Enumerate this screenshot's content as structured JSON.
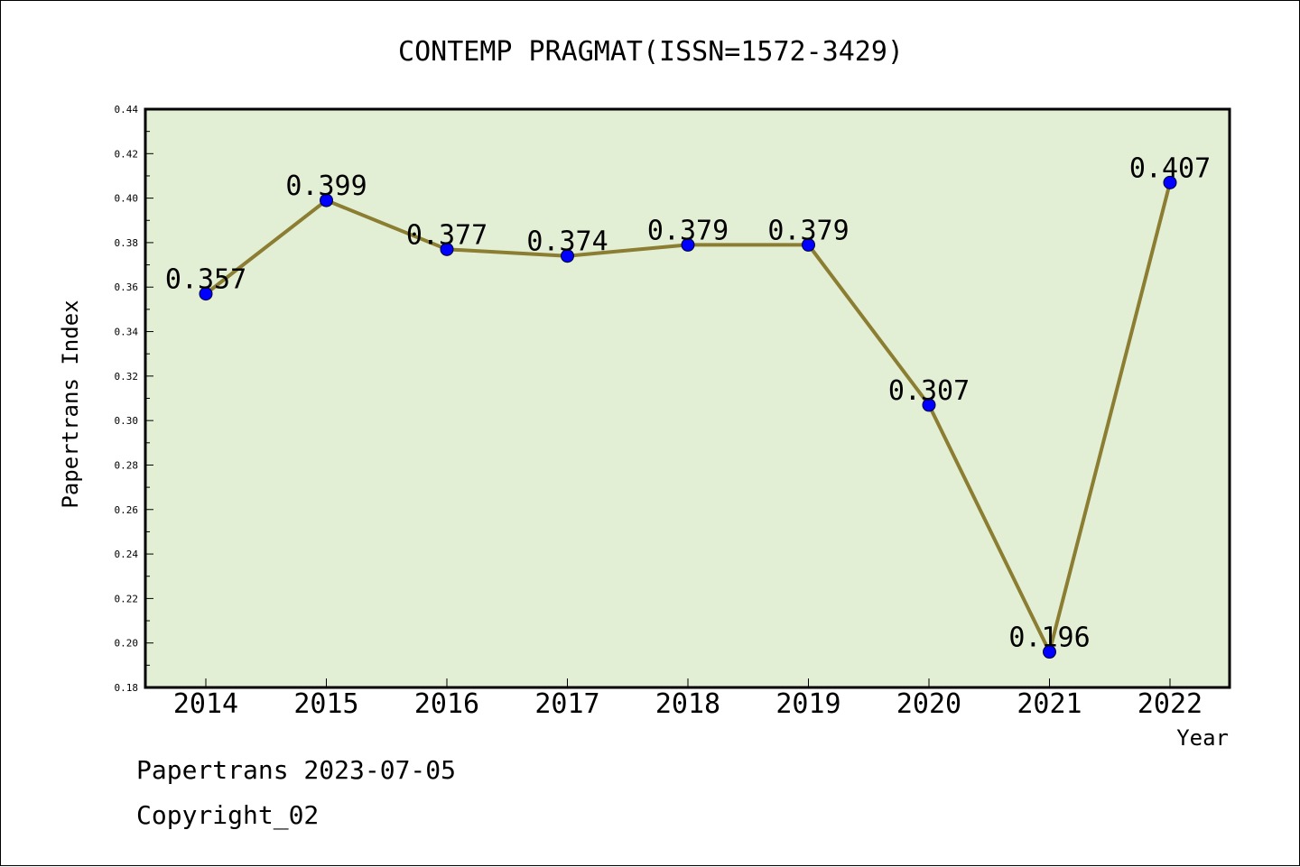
{
  "chart_data": {
    "type": "line",
    "title": "CONTEMP PRAGMAT(ISSN=1572-3429)",
    "xlabel": "Year",
    "ylabel": "Papertrans Index",
    "categories": [
      "2014",
      "2015",
      "2016",
      "2017",
      "2018",
      "2019",
      "2020",
      "2021",
      "2022"
    ],
    "series": [
      {
        "values": [
          0.357,
          0.399,
          0.377,
          0.374,
          0.379,
          0.379,
          0.307,
          0.196,
          0.407
        ],
        "labels": [
          "0.357",
          "0.399",
          "0.377",
          "0.374",
          "0.379",
          "0.379",
          "0.307",
          "0.196",
          "0.407"
        ]
      }
    ],
    "ylim": [
      0.18,
      0.44
    ],
    "yticks": [
      "0.18",
      "0.20",
      "0.22",
      "0.24",
      "0.26",
      "0.28",
      "0.30",
      "0.32",
      "0.34",
      "0.36",
      "0.38",
      "0.40",
      "0.42",
      "0.44"
    ],
    "grid": false,
    "colors": {
      "plot_background": "#e2efd4",
      "line": "#8b7d32",
      "marker": "#0000ff"
    }
  },
  "footer": {
    "date_line": "Papertrans 2023-07-05",
    "copyright_line": "Copyright_02"
  }
}
